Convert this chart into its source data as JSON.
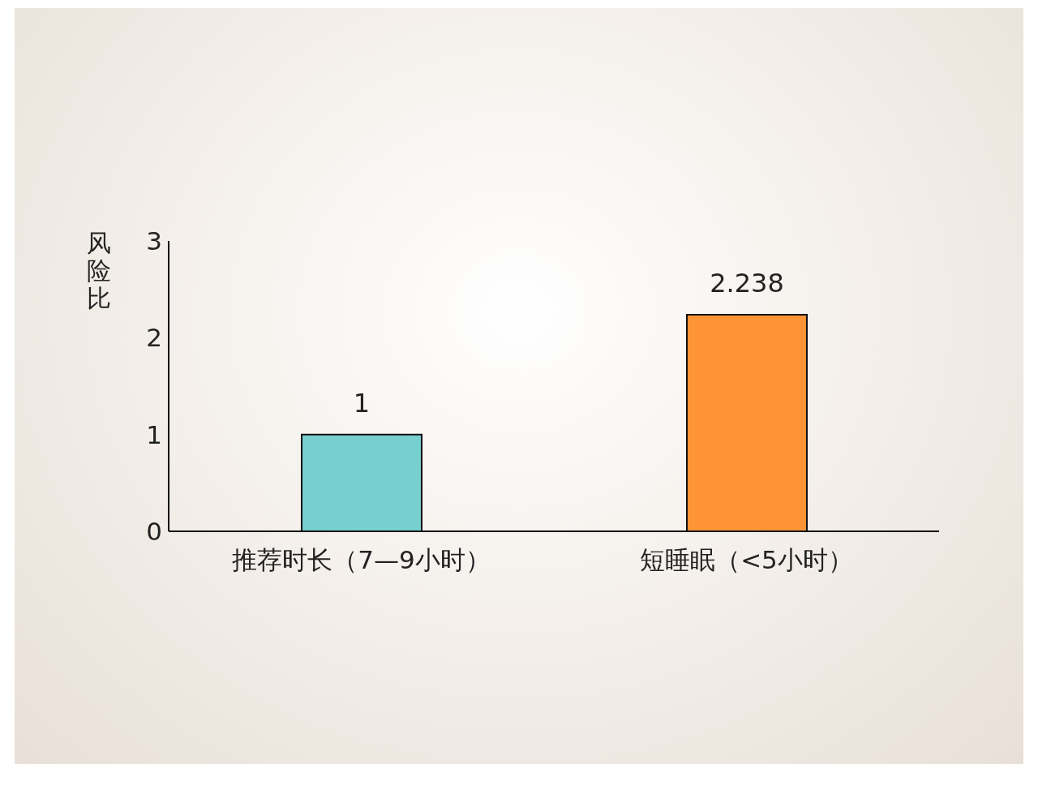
{
  "chart_data": {
    "type": "bar",
    "ylabel": "风险比",
    "categories": [
      "推荐时长（7—9小时）",
      "短睡眠（<5小时）"
    ],
    "values": [
      1,
      2.238
    ],
    "colors": [
      "#77cfd0",
      "#ff9436"
    ],
    "ylim": [
      0,
      3
    ],
    "yticks": [
      0,
      1,
      2,
      3
    ],
    "data_labels": true
  }
}
